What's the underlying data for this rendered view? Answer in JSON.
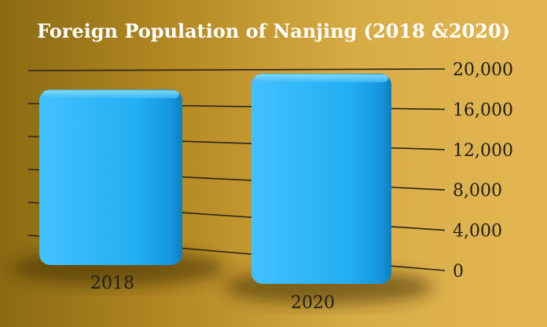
{
  "chart_data": {
    "type": "bar",
    "title": "Foreign Population of Nanjing (2018 &2020)",
    "categories": [
      "2018",
      "2020"
    ],
    "values": [
      18800,
      20000
    ],
    "ylim": [
      0,
      20000
    ],
    "y_ticks": [
      "0",
      "4,000",
      "8,000",
      "12,000",
      "16,000",
      "20,000"
    ],
    "y_tick_values": [
      0,
      4000,
      8000,
      12000,
      16000,
      20000
    ],
    "grid": true,
    "bar_color": "#1ea9ef",
    "bar_highlight": "#5cd0ff",
    "legend": "none"
  }
}
